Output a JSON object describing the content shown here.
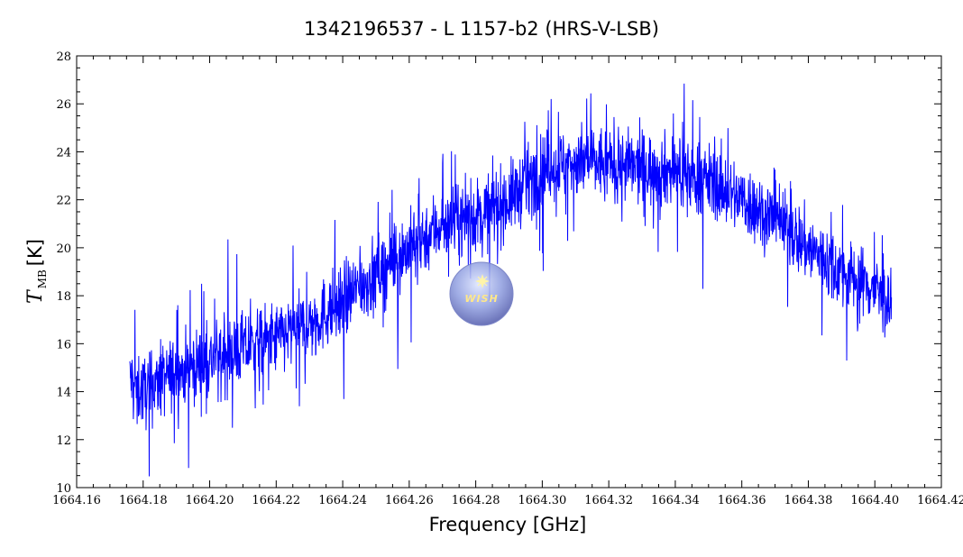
{
  "chart_data": {
    "type": "line",
    "title": "1342196537 - L 1157-b2 (HRS-V-LSB)",
    "xlabel": "Frequency [GHz]",
    "ylabel": {
      "main": "T",
      "subscript": "MB",
      "unit": "[K]"
    },
    "xlim": [
      1664.16,
      1664.42
    ],
    "ylim": [
      10,
      28
    ],
    "x_ticks": [
      1664.16,
      1664.18,
      1664.2,
      1664.22,
      1664.24,
      1664.26,
      1664.28,
      1664.3,
      1664.32,
      1664.34,
      1664.36,
      1664.38,
      1664.4,
      1664.42
    ],
    "x_tick_labels": [
      "1664.16",
      "1664.18",
      "1664.20",
      "1664.22",
      "1664.24",
      "1664.26",
      "1664.28",
      "1664.30",
      "1664.32",
      "1664.34",
      "1664.36",
      "1664.38",
      "1664.40",
      "1664.42"
    ],
    "y_ticks": [
      10,
      12,
      14,
      16,
      18,
      20,
      22,
      24,
      26,
      28
    ],
    "y_tick_labels": [
      "10",
      "12",
      "14",
      "16",
      "18",
      "20",
      "22",
      "24",
      "26",
      "28"
    ],
    "grid": false,
    "series": [
      {
        "color": "#0000ff",
        "x": [
          1664.176,
          1664.18,
          1664.19,
          1664.2,
          1664.21,
          1664.22,
          1664.23,
          1664.24,
          1664.25,
          1664.26,
          1664.27,
          1664.28,
          1664.29,
          1664.3,
          1664.31,
          1664.32,
          1664.33,
          1664.34,
          1664.35,
          1664.36,
          1664.37,
          1664.38,
          1664.39,
          1664.4,
          1664.405
        ],
        "y": [
          14.5,
          14.0,
          14.8,
          15.3,
          15.8,
          16.2,
          16.8,
          17.8,
          18.9,
          20.0,
          21.0,
          21.3,
          22.0,
          23.3,
          23.6,
          23.5,
          23.3,
          23.2,
          22.8,
          22.0,
          21.2,
          20.0,
          19.0,
          18.3,
          17.5
        ],
        "noise_amplitude": 1.0
      }
    ],
    "logo": {
      "text": "WISH",
      "icon": "star-icon"
    }
  }
}
